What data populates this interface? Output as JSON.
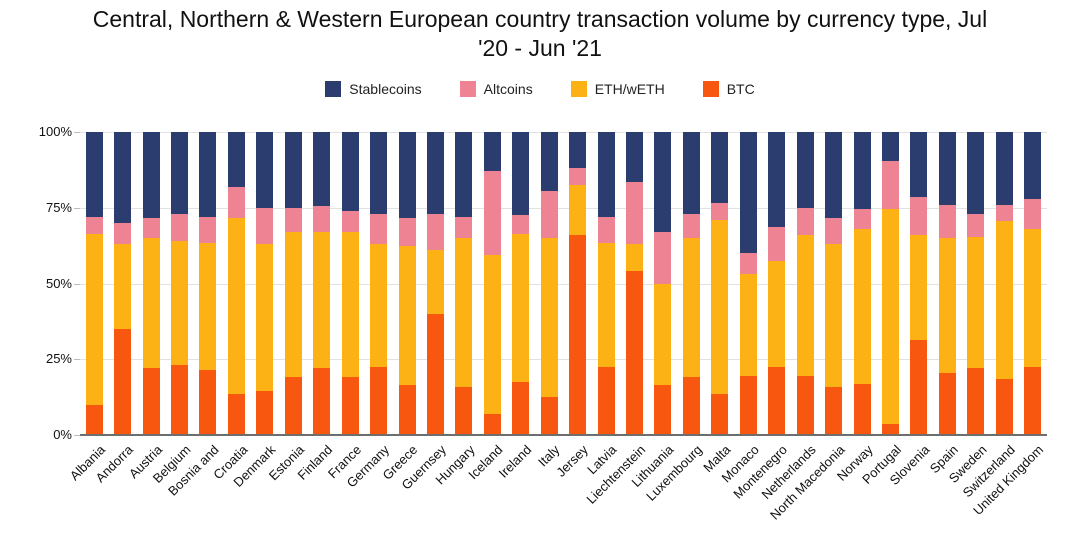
{
  "title_lines": [
    "Central, Northern & Western European country transaction volume by currency type, Jul",
    "'20 - Jun '21"
  ],
  "legend": {
    "items": [
      {
        "label": "Stablecoins",
        "color": "#2b3d6e"
      },
      {
        "label": "Altcoins",
        "color": "#ee8493"
      },
      {
        "label": "ETH/wETH",
        "color": "#fcb215"
      },
      {
        "label": "BTC",
        "color": "#f8570f"
      }
    ]
  },
  "y_axis": {
    "ticks": [
      {
        "value": 0,
        "label": "0%"
      },
      {
        "value": 25,
        "label": "25%"
      },
      {
        "value": 50,
        "label": "50%"
      },
      {
        "value": 75,
        "label": "75%"
      },
      {
        "value": 100,
        "label": "100%"
      }
    ]
  },
  "chart_data": {
    "type": "bar",
    "stacked": true,
    "units": "percent",
    "ylim": [
      0,
      100
    ],
    "grid": true,
    "legend_position": "top",
    "categories": [
      "Albania",
      "Andorra",
      "Austria",
      "Belgium",
      "Bosnia and",
      "Croatia",
      "Denmark",
      "Estonia",
      "Finland",
      "France",
      "Germany",
      "Greece",
      "Guernsey",
      "Hungary",
      "Iceland",
      "Ireland",
      "Italy",
      "Jersey",
      "Latvia",
      "Liechtenstein",
      "Lithuania",
      "Luxembourg",
      "Malta",
      "Monaco",
      "Montenegro",
      "Netherlands",
      "North Macedonia",
      "Norway",
      "Portugal",
      "Slovenia",
      "Spain",
      "Sweden",
      "Switzerland",
      "United Kingdom"
    ],
    "series": [
      {
        "name": "BTC",
        "color": "#f8570f",
        "stack_order": 1,
        "values": [
          10,
          35,
          22,
          23,
          21.5,
          13.5,
          14.5,
          19,
          22,
          19,
          22.5,
          16.5,
          40,
          16,
          7,
          17.5,
          12.5,
          66,
          22.5,
          54,
          16.5,
          19,
          13.5,
          19.5,
          22.5,
          19.5,
          16,
          17,
          3.5,
          31.5,
          20.5,
          22,
          18.5,
          22.5
        ]
      },
      {
        "name": "ETH/wETH",
        "color": "#fcb215",
        "stack_order": 2,
        "values": [
          56.5,
          28,
          43,
          41,
          42,
          58,
          48.5,
          48,
          45,
          48,
          40.5,
          46,
          21,
          49,
          52.5,
          49,
          52.5,
          16.5,
          41,
          9,
          33.5,
          46,
          57.5,
          33.5,
          35,
          46.5,
          47,
          51,
          71,
          34.5,
          44.5,
          43.5,
          52,
          45.5
        ]
      },
      {
        "name": "Altcoins",
        "color": "#ee8493",
        "stack_order": 3,
        "values": [
          5.5,
          7,
          6.5,
          9,
          8.5,
          10.5,
          12,
          8,
          8.5,
          7,
          10,
          9,
          12,
          7,
          27.5,
          6,
          15.5,
          5.5,
          8.5,
          20.5,
          17,
          8,
          5.5,
          7,
          11,
          9,
          8.5,
          6.5,
          16,
          12.5,
          11,
          7.5,
          5.5,
          10
        ]
      },
      {
        "name": "Stablecoins",
        "color": "#2b3d6e",
        "stack_order": 4,
        "values": [
          28,
          30,
          28.5,
          27,
          28,
          18,
          25,
          25,
          24.5,
          26,
          27,
          28.5,
          27,
          28,
          13,
          27.5,
          19.5,
          12,
          28,
          16.5,
          33,
          27,
          23.5,
          40,
          31.5,
          25,
          28.5,
          25.5,
          9.5,
          21.5,
          24,
          27,
          24,
          22
        ]
      }
    ]
  }
}
